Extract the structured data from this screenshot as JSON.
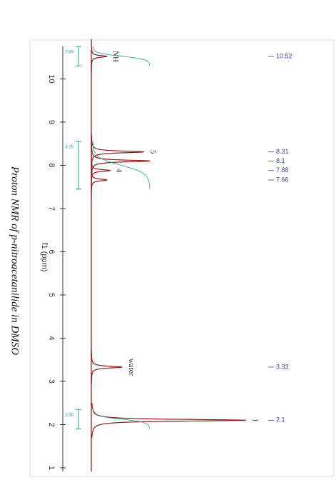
{
  "chart_data": {
    "type": "spectrum",
    "title": "Proton NMR of p-nitroacetanilide in DMSO",
    "x_label": "f1 (ppm)",
    "x": [
      10.52,
      8.31,
      8.1,
      7.88,
      7.66,
      3.33,
      2.1
    ],
    "values": [
      10,
      34,
      38,
      12,
      10,
      20,
      100
    ],
    "peak_labels": [
      "NH",
      "5",
      null,
      "4",
      null,
      "water",
      "1"
    ],
    "color": "#8b1a1a",
    "integral_color": "#2a9d8f",
    "integrals": [
      {
        "value": 0.89,
        "range": [
          10.75,
          10.3
        ]
      },
      {
        "value": 4.15,
        "range": [
          8.55,
          7.45
        ]
      },
      {
        "value": 2,
        "label": "2.00",
        "range": [
          2.35,
          1.9
        ]
      }
    ],
    "xlim": [
      10.9,
      0.8
    ],
    "ylim": [
      0,
      100
    ],
    "xticks": [
      10,
      9,
      8,
      7,
      6,
      5,
      4,
      3,
      2,
      1
    ]
  }
}
